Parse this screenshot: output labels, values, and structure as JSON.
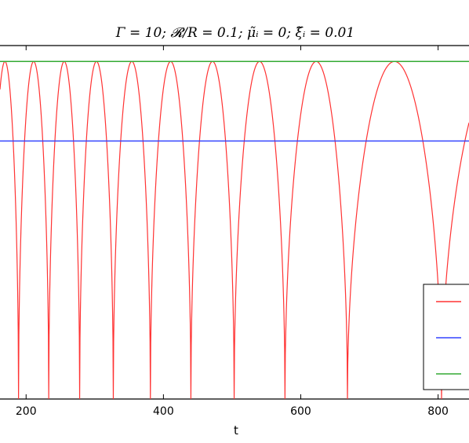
{
  "chart_data": {
    "type": "line",
    "title": "Γ = 10;    𝓡/R = 0.1;    μ̃ᵢ = 0;    ξ̃ᵢ = 0.01",
    "xlabel": "t",
    "ylabel": "",
    "xlim": [
      162,
      845
    ],
    "ylim": [
      0,
      1
    ],
    "x_ticks": [
      200,
      400,
      600,
      800
    ],
    "grid": false,
    "legend_position": "lower-right",
    "colors": {
      "red": "#ff3333",
      "blue": "#3344ff",
      "green": "#33aa33"
    },
    "series": [
      {
        "color": "red",
        "minima_t": [
          189,
          233,
          278,
          327,
          381,
          440,
          503,
          577,
          668,
          805
        ],
        "peak_value": 0.955,
        "min_value": 0.0
      },
      {
        "color": "blue",
        "constant_value": 0.73
      },
      {
        "color": "green",
        "constant_value": 0.955
      }
    ]
  }
}
